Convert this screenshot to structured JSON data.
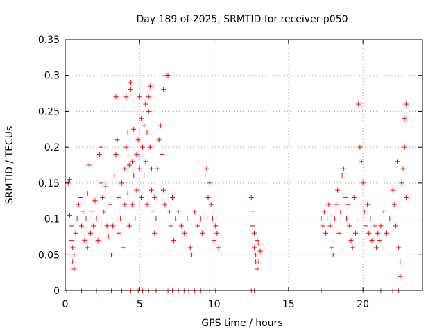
{
  "chart_data": {
    "type": "scatter",
    "title": "Day 189 of 2025, SRMTID for receiver p050",
    "xlabel": "GPS time / hours",
    "ylabel": "SRMTID / TECUs",
    "xlim": [
      0,
      24
    ],
    "ylim": [
      0,
      0.35
    ],
    "xticks": [
      0,
      5,
      10,
      15,
      20
    ],
    "xtick_labels": [
      "0",
      "5",
      "10",
      "15",
      "20"
    ],
    "yticks": [
      0,
      0.05,
      0.1,
      0.15,
      0.2,
      0.25,
      0.3,
      0.35
    ],
    "ytick_labels": [
      "0",
      "0.05",
      "0.1",
      "0.15",
      "0.2",
      "0.25",
      "0.3",
      "0.35"
    ],
    "grid": true,
    "marker": "+",
    "color": "#ff0000",
    "series": [
      {
        "name": "SRMTID",
        "points": [
          [
            0.2,
            0.15
          ],
          [
            0.3,
            0.155
          ],
          [
            0.3,
            0.105
          ],
          [
            0.4,
            0.09
          ],
          [
            0.4,
            0.07
          ],
          [
            0.5,
            0.06
          ],
          [
            0.5,
            0.04
          ],
          [
            0.6,
            0.03
          ],
          [
            0.6,
            0.05
          ],
          [
            0.7,
            0.08
          ],
          [
            0.8,
            0.1
          ],
          [
            0.9,
            0.12
          ],
          [
            1.0,
            0.13
          ],
          [
            1.1,
            0.09
          ],
          [
            1.2,
            0.11
          ],
          [
            1.3,
            0.07
          ],
          [
            1.4,
            0.1
          ],
          [
            1.5,
            0.135
          ],
          [
            1.5,
            0.06
          ],
          [
            1.6,
            0.175
          ],
          [
            1.7,
            0.08
          ],
          [
            1.8,
            0.11
          ],
          [
            1.9,
            0.09
          ],
          [
            2.0,
            0.125
          ],
          [
            2.1,
            0.1
          ],
          [
            2.2,
            0.07
          ],
          [
            2.3,
            0.19
          ],
          [
            2.4,
            0.2
          ],
          [
            2.4,
            0.15
          ],
          [
            2.5,
            0.13
          ],
          [
            2.6,
            0.11
          ],
          [
            2.7,
            0.145
          ],
          [
            2.8,
            0.09
          ],
          [
            2.9,
            0.075
          ],
          [
            3.0,
            0.12
          ],
          [
            3.1,
            0.05
          ],
          [
            3.2,
            0.09
          ],
          [
            3.3,
            0.16
          ],
          [
            3.4,
            0.27
          ],
          [
            3.4,
            0.19
          ],
          [
            3.5,
            0.21
          ],
          [
            3.6,
            0.13
          ],
          [
            3.6,
            0.08
          ],
          [
            3.7,
            0.1
          ],
          [
            3.8,
            0.15
          ],
          [
            3.9,
            0.06
          ],
          [
            4.0,
            0.12
          ],
          [
            4.0,
            0.17
          ],
          [
            4.1,
            0.2
          ],
          [
            4.1,
            0.27
          ],
          [
            4.2,
            0.22
          ],
          [
            4.2,
            0.135
          ],
          [
            4.3,
            0.175
          ],
          [
            4.3,
            0.09
          ],
          [
            4.4,
            0.28
          ],
          [
            4.4,
            0.29
          ],
          [
            4.5,
            0.18
          ],
          [
            4.5,
            0.12
          ],
          [
            4.6,
            0.225
          ],
          [
            4.6,
            0.16
          ],
          [
            4.7,
            0.1
          ],
          [
            4.8,
            0.19
          ],
          [
            4.8,
            0.14
          ],
          [
            4.9,
            0.21
          ],
          [
            5.0,
            0.27
          ],
          [
            5.0,
            0.17
          ],
          [
            5.1,
            0.24
          ],
          [
            5.1,
            0.13
          ],
          [
            5.2,
            0.2
          ],
          [
            5.3,
            0.16
          ],
          [
            5.3,
            0.23
          ],
          [
            5.4,
            0.26
          ],
          [
            5.4,
            0.18
          ],
          [
            5.5,
            0.12
          ],
          [
            5.5,
            0.22
          ],
          [
            5.6,
            0.27
          ],
          [
            5.6,
            0.25
          ],
          [
            5.7,
            0.285
          ],
          [
            5.7,
            0.2
          ],
          [
            5.8,
            0.17
          ],
          [
            5.8,
            0.14
          ],
          [
            5.9,
            0.11
          ],
          [
            6.0,
            0.13
          ],
          [
            6.0,
            0.08
          ],
          [
            6.1,
            0.1
          ],
          [
            6.2,
            0.17
          ],
          [
            6.3,
            0.21
          ],
          [
            6.4,
            0.23
          ],
          [
            6.5,
            0.19
          ],
          [
            6.6,
            0.28
          ],
          [
            6.6,
            0.14
          ],
          [
            6.7,
            0.12
          ],
          [
            6.8,
            0.3
          ],
          [
            6.9,
            0.3
          ],
          [
            7.0,
            0.11
          ],
          [
            7.1,
            0.09
          ],
          [
            7.2,
            0.13
          ],
          [
            7.3,
            0.07
          ],
          [
            7.4,
            0.1
          ],
          [
            7.6,
            0.11
          ],
          [
            7.8,
            0.09
          ],
          [
            8.0,
            0.08
          ],
          [
            8.2,
            0.1
          ],
          [
            8.4,
            0.06
          ],
          [
            8.5,
            0.05
          ],
          [
            8.7,
            0.11
          ],
          [
            8.9,
            0.09
          ],
          [
            9.1,
            0.1
          ],
          [
            9.2,
            0.08
          ],
          [
            9.4,
            0.16
          ],
          [
            9.5,
            0.17
          ],
          [
            9.6,
            0.13
          ],
          [
            9.7,
            0.15
          ],
          [
            9.8,
            0.12
          ],
          [
            9.9,
            0.1
          ],
          [
            10.0,
            0.07
          ],
          [
            10.1,
            0.09
          ],
          [
            10.2,
            0.08
          ],
          [
            10.3,
            0.06
          ],
          [
            12.5,
            0.13
          ],
          [
            12.6,
            0.11
          ],
          [
            12.6,
            0.09
          ],
          [
            12.7,
            0.08
          ],
          [
            12.7,
            0.06
          ],
          [
            12.8,
            0.05
          ],
          [
            12.8,
            0.04
          ],
          [
            12.9,
            0.07
          ],
          [
            12.9,
            0.03
          ],
          [
            13.0,
            0.065
          ],
          [
            13.0,
            0.04
          ],
          [
            13.1,
            0.055
          ],
          [
            17.2,
            0.1
          ],
          [
            17.3,
            0.09
          ],
          [
            17.4,
            0.11
          ],
          [
            17.5,
            0.08
          ],
          [
            17.6,
            0.1
          ],
          [
            17.7,
            0.12
          ],
          [
            17.8,
            0.09
          ],
          [
            17.9,
            0.06
          ],
          [
            18.0,
            0.05
          ],
          [
            18.1,
            0.1
          ],
          [
            18.2,
            0.12
          ],
          [
            18.3,
            0.14
          ],
          [
            18.4,
            0.08
          ],
          [
            18.5,
            0.11
          ],
          [
            18.6,
            0.16
          ],
          [
            18.7,
            0.17
          ],
          [
            18.8,
            0.13
          ],
          [
            18.9,
            0.1
          ],
          [
            19.0,
            0.12
          ],
          [
            19.1,
            0.09
          ],
          [
            19.2,
            0.07
          ],
          [
            19.3,
            0.06
          ],
          [
            19.4,
            0.13
          ],
          [
            19.5,
            0.08
          ],
          [
            19.6,
            0.1
          ],
          [
            19.7,
            0.26
          ],
          [
            19.8,
            0.2
          ],
          [
            19.9,
            0.18
          ],
          [
            20.0,
            0.15
          ],
          [
            20.1,
            0.11
          ],
          [
            20.2,
            0.09
          ],
          [
            20.3,
            0.12
          ],
          [
            20.4,
            0.08
          ],
          [
            20.5,
            0.1
          ],
          [
            20.6,
            0.07
          ],
          [
            20.8,
            0.09
          ],
          [
            20.9,
            0.06
          ],
          [
            21.0,
            0.08
          ],
          [
            21.1,
            0.07
          ],
          [
            21.2,
            0.09
          ],
          [
            21.4,
            0.11
          ],
          [
            21.6,
            0.08
          ],
          [
            21.8,
            0.1
          ],
          [
            22.0,
            0.14
          ],
          [
            22.1,
            0.12
          ],
          [
            22.2,
            0.09
          ],
          [
            22.3,
            0.18
          ],
          [
            22.4,
            0.06
          ],
          [
            22.5,
            0.04
          ],
          [
            22.5,
            0.02
          ],
          [
            22.6,
            0.15
          ],
          [
            22.7,
            0.17
          ],
          [
            22.8,
            0.2
          ],
          [
            22.8,
            0.24
          ],
          [
            22.9,
            0.26
          ],
          [
            22.9,
            0.13
          ],
          [
            0.1,
            0
          ],
          [
            1.1,
            0
          ],
          [
            2.1,
            0
          ],
          [
            3.1,
            0
          ],
          [
            3.8,
            0
          ],
          [
            4.4,
            0
          ],
          [
            4.9,
            0
          ],
          [
            5.2,
            0
          ],
          [
            5.6,
            0
          ],
          [
            6.1,
            0
          ],
          [
            6.5,
            0
          ],
          [
            6.9,
            0
          ],
          [
            7.2,
            0
          ],
          [
            7.6,
            0
          ],
          [
            8.0,
            0
          ],
          [
            8.3,
            0
          ],
          [
            8.7,
            0
          ],
          [
            9.1,
            0
          ],
          [
            9.7,
            0
          ],
          [
            10.1,
            0
          ],
          [
            12.5,
            0
          ],
          [
            12.7,
            0
          ],
          [
            17.2,
            0
          ],
          [
            20.0,
            0
          ],
          [
            21.2,
            0
          ],
          [
            22.0,
            0
          ],
          [
            22.4,
            0
          ]
        ]
      }
    ]
  }
}
